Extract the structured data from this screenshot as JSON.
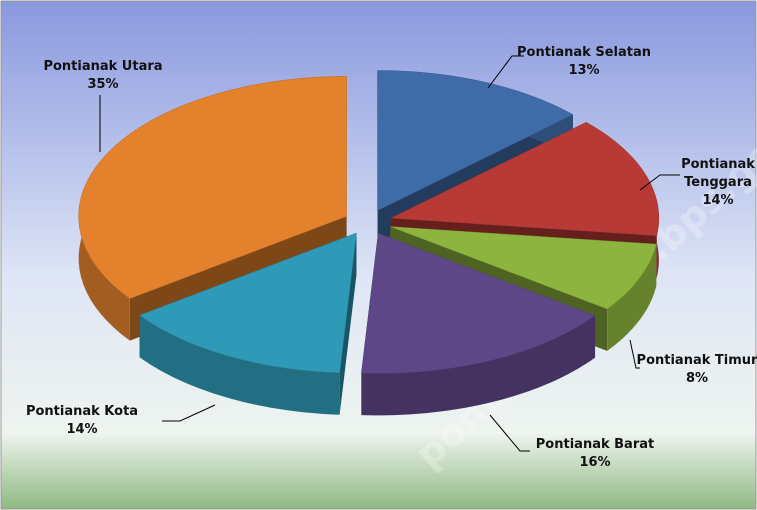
{
  "chart_data": {
    "type": "pie",
    "categories": [
      "Pontianak Selatan",
      "Pontianak Tenggara",
      "Pontianak Timur",
      "Pontianak Barat",
      "Pontianak Kota",
      "Pontianak Utara"
    ],
    "values": [
      13,
      14,
      8,
      16,
      14,
      35
    ],
    "value_labels": [
      "13%",
      "14%",
      "8%",
      "16%",
      "14%",
      "35%"
    ],
    "colors": [
      "#3f6ca8",
      "#b83a36",
      "#8db43e",
      "#5e4787",
      "#2f9ab7",
      "#e3812c"
    ],
    "watermark": "pontianakkota.bps.go.id"
  }
}
